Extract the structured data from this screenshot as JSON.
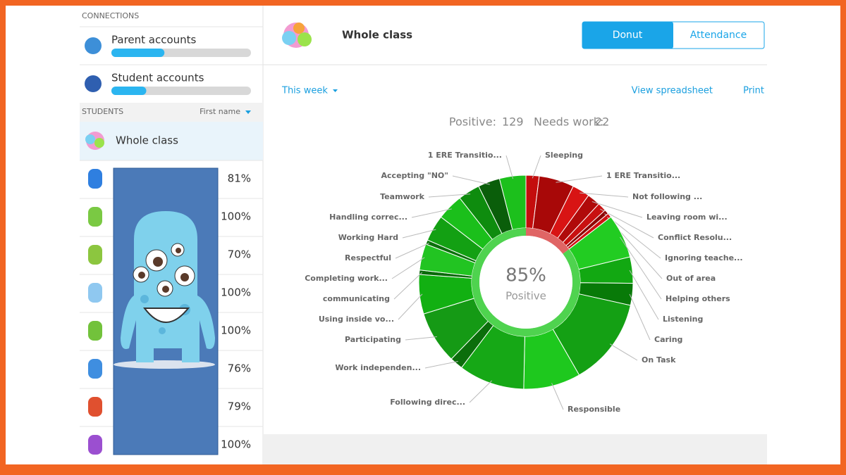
{
  "sidebar": {
    "connections_heading": "CONNECTIONS",
    "connections": [
      {
        "label": "Parent accounts",
        "progress": 38
      },
      {
        "label": "Student accounts",
        "progress": 25
      }
    ],
    "students_heading": "STUDENTS",
    "sort": "First name",
    "whole_class": "Whole class",
    "students": [
      {
        "score": "81%"
      },
      {
        "score": "100%"
      },
      {
        "score": "70%"
      },
      {
        "score": "100%"
      },
      {
        "score": "100%"
      },
      {
        "score": "76%"
      },
      {
        "score": "79%"
      },
      {
        "score": "100%"
      }
    ]
  },
  "header": {
    "title": "Whole class",
    "tabs": [
      "Donut",
      "Attendance"
    ]
  },
  "toolbar": {
    "period": "This week",
    "links": [
      "View spreadsheet",
      "Print"
    ]
  },
  "chart_data": {
    "type": "donut",
    "stats": [
      {
        "label": "Positive:",
        "value": 129
      },
      {
        "label": "Needs work:",
        "value": 22
      }
    ],
    "center_value": "85%",
    "center_label": "Positive",
    "categories": [
      "Sleeping",
      "1 ERE Transitio...",
      "Not following ...",
      "Leaving room wi...",
      "Conflict Resolu...",
      "Ignoring teache...",
      "Out of area",
      "Helping others",
      "Listening",
      "Caring",
      "On Task",
      "Responsible",
      "Following direc...",
      "Work independen...",
      "Participating",
      "Using inside vo...",
      "communicating",
      "Completing work...",
      "Respectful",
      "Working Hard",
      "Handling correc...",
      "Teamwork",
      "Accepting \"NO\"",
      "1 ERE Transitio..."
    ],
    "values": [
      3,
      8,
      4,
      3,
      2,
      1,
      1,
      10,
      6,
      5,
      20,
      13,
      15,
      3,
      12,
      9,
      1,
      6,
      1,
      6,
      6,
      5,
      5,
      6
    ],
    "colors": [
      "#c40d0d",
      "#a80808",
      "#d81414",
      "#b00a0a",
      "#c91010",
      "#8f0505",
      "#d01212",
      "#22cc22",
      "#12a812",
      "#087a08",
      "#14a014",
      "#1ec81e",
      "#16a816",
      "#0b6e0b",
      "#159a15",
      "#12b012",
      "#0a6a0a",
      "#22c422",
      "#0b700b",
      "#13a013",
      "#1bbf1b",
      "#0e8c0e",
      "#0a5e0a",
      "#1cc01c"
    ]
  }
}
